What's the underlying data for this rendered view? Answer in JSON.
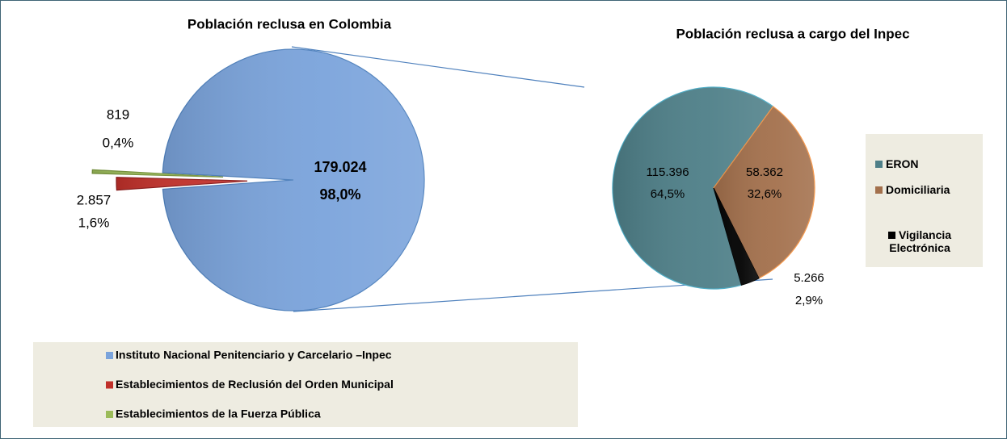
{
  "chart_data": [
    {
      "type": "pie",
      "title": "Población reclusa en Colombia",
      "categories": [
        "Instituto Nacional Penitenciario y Carcelario –Inpec",
        "Establecimientos de Reclusión del Orden Municipal",
        "Establecimientos de la Fuerza Pública"
      ],
      "values": [
        179024,
        2857,
        819
      ],
      "value_labels": [
        "179.024",
        "2.857",
        "819"
      ],
      "percentages": [
        98.0,
        1.6,
        0.4
      ],
      "percentage_labels": [
        "98,0%",
        "1,6%",
        "0,4%"
      ],
      "colors": [
        "#7aa3db",
        "#c0302a",
        "#9bbb59"
      ],
      "legend": "bottom"
    },
    {
      "type": "pie",
      "title": "Población reclusa a cargo del Inpec",
      "categories": [
        "ERON",
        "Domiciliaria",
        "Vigilancia Electrónica"
      ],
      "values": [
        115396,
        58362,
        5266
      ],
      "value_labels": [
        "115.396",
        "58.362",
        "5.266"
      ],
      "percentages": [
        64.5,
        32.6,
        2.9
      ],
      "percentage_labels": [
        "64,5%",
        "32,6%",
        "2,9%"
      ],
      "colors": [
        "#4e7f88",
        "#a3704c",
        "#000000"
      ],
      "legend": "right"
    }
  ]
}
